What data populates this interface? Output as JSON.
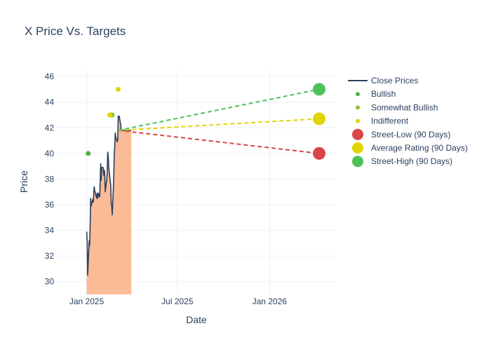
{
  "chart_data": {
    "type": "line",
    "title": "X Price Vs. Targets",
    "xlabel": "Date",
    "ylabel": "Price",
    "grid": true,
    "legend_position": "right",
    "x_range": [
      "2024-11-01",
      "2026-05-15"
    ],
    "ylim": [
      29,
      46.5
    ],
    "x_ticks": [
      {
        "date": "2025-01-01",
        "label": "Jan 2025"
      },
      {
        "date": "2025-07-01",
        "label": "Jul 2025"
      },
      {
        "date": "2026-01-01",
        "label": "Jan 2026"
      }
    ],
    "y_ticks": [
      30,
      32,
      34,
      36,
      38,
      40,
      42,
      44,
      46
    ],
    "series": [
      {
        "name": "Close Prices",
        "kind": "line-area",
        "color": "#2a3f5f",
        "fill_color": "#fbbb96",
        "x": [
          "2025-01-01",
          "2025-01-02",
          "2025-01-03",
          "2025-01-06",
          "2025-01-07",
          "2025-01-08",
          "2025-01-09",
          "2025-01-10",
          "2025-01-13",
          "2025-01-14",
          "2025-01-15",
          "2025-01-16",
          "2025-01-17",
          "2025-01-21",
          "2025-01-22",
          "2025-01-23",
          "2025-01-24",
          "2025-01-27",
          "2025-01-28",
          "2025-01-29",
          "2025-01-30",
          "2025-01-31",
          "2025-02-03",
          "2025-02-04",
          "2025-02-05",
          "2025-02-06",
          "2025-02-07",
          "2025-02-10",
          "2025-02-11",
          "2025-02-12",
          "2025-02-13",
          "2025-02-14",
          "2025-02-18",
          "2025-02-19",
          "2025-02-20",
          "2025-02-21",
          "2025-02-24",
          "2025-02-25",
          "2025-02-26",
          "2025-02-27",
          "2025-02-28",
          "2025-03-03",
          "2025-03-04",
          "2025-03-05",
          "2025-03-06",
          "2025-03-07",
          "2025-03-10",
          "2025-03-11",
          "2025-03-12",
          "2025-03-13",
          "2025-03-14",
          "2025-03-17",
          "2025-03-18",
          "2025-03-19",
          "2025-03-20",
          "2025-03-21",
          "2025-03-24",
          "2025-03-25",
          "2025-03-26",
          "2025-03-27",
          "2025-03-28",
          "2025-03-31"
        ],
        "values": [
          33.9,
          33.1,
          30.5,
          33.2,
          32.8,
          34.5,
          36.5,
          35.9,
          36.4,
          36.2,
          36.8,
          37.4,
          37.1,
          36.5,
          36.9,
          36.5,
          36.9,
          36.6,
          37.8,
          39.2,
          37.9,
          38.9,
          38.9,
          38.3,
          38.7,
          38.5,
          37.0,
          38.0,
          38.5,
          40.1,
          39.8,
          38.9,
          37.5,
          36.1,
          35.9,
          35.2,
          38.0,
          39.9,
          40.5,
          41.6,
          41.3,
          40.9,
          41.1,
          42.9,
          42.9,
          42.9,
          42.2,
          41.8,
          41.8,
          41.8,
          41.8,
          41.8,
          41.8,
          41.8,
          41.8,
          41.8,
          41.8,
          41.8,
          41.8,
          41.8,
          41.8,
          41.8
        ]
      },
      {
        "name": "Bullish",
        "kind": "markers",
        "color": "#4cb648",
        "points": [
          {
            "x": "2025-01-04",
            "y": 40
          },
          {
            "x": "2025-02-19",
            "y": 43
          }
        ]
      },
      {
        "name": "Somewhat Bullish",
        "kind": "markers",
        "color": "#92c532",
        "points": [
          {
            "x": "2025-02-21",
            "y": 43
          }
        ]
      },
      {
        "name": "Indifferent",
        "kind": "markers",
        "color": "#e0d500",
        "points": [
          {
            "x": "2025-02-16",
            "y": 43
          },
          {
            "x": "2025-03-05",
            "y": 45
          }
        ]
      },
      {
        "name": "Street-Low (90 Days)",
        "kind": "target",
        "color": "#d9454a",
        "from": {
          "x": "2025-03-05",
          "y": 41.8
        },
        "to": {
          "x": "2026-04-10",
          "y": 40
        }
      },
      {
        "name": "Average Rating (90 Days)",
        "kind": "target",
        "color": "#e0d500",
        "from": {
          "x": "2025-03-05",
          "y": 41.8
        },
        "to": {
          "x": "2026-04-10",
          "y": 42.7
        }
      },
      {
        "name": "Street-High (90 Days)",
        "kind": "target",
        "color": "#4cc15a",
        "from": {
          "x": "2025-03-05",
          "y": 41.8
        },
        "to": {
          "x": "2026-04-10",
          "y": 45
        }
      }
    ]
  }
}
